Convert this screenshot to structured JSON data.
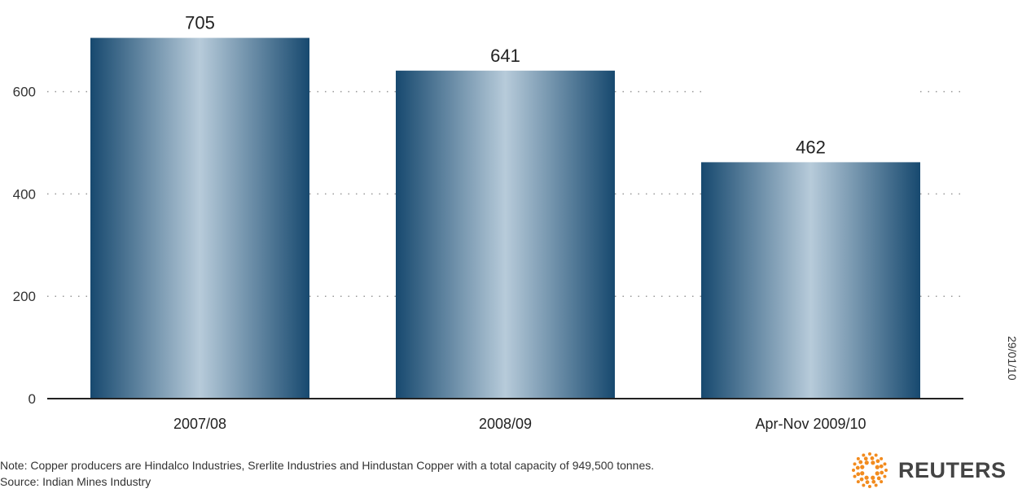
{
  "chart_data": {
    "type": "bar",
    "categories": [
      "2007/08",
      "2008/09",
      "Apr-Nov 2009/10"
    ],
    "values": [
      705,
      641,
      462
    ],
    "data_labels": [
      "705",
      "641",
      "462"
    ],
    "yticks": [
      0,
      200,
      400,
      600
    ],
    "ylim": [
      0,
      780
    ],
    "grid": "dotted",
    "colors": {
      "bar_edge": "#17496f",
      "bar_center": "#b7cbda",
      "grid": "#999999",
      "axis": "#222222"
    }
  },
  "footer": {
    "note": "Note: Copper producers are Hindalco Industries, Srerlite Industries and Hindustan Copper with a total capacity of 949,500 tonnes.",
    "source": "Source: Indian Mines Industry",
    "date": "29/01/10"
  },
  "logo": {
    "text": "REUTERS",
    "icon": "reuters-dot-ring-icon",
    "color": "#f28b1e"
  }
}
